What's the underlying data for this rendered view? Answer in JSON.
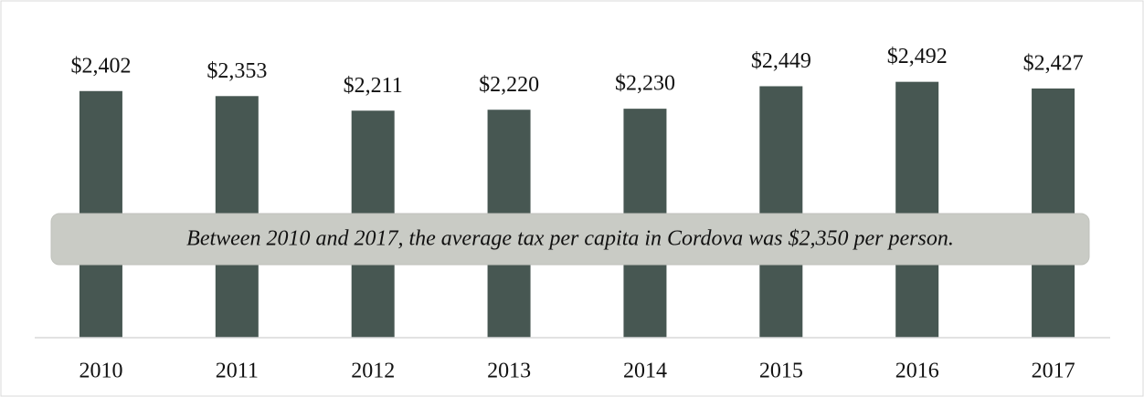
{
  "chart_data": {
    "type": "bar",
    "categories": [
      "2010",
      "2011",
      "2012",
      "2013",
      "2014",
      "2015",
      "2016",
      "2017"
    ],
    "values": [
      2402,
      2353,
      2211,
      2220,
      2230,
      2449,
      2492,
      2427
    ],
    "value_labels": [
      "$2,402",
      "$2,353",
      "$2,211",
      "$2,220",
      "$2,230",
      "$2,449",
      "$2,492",
      "$2,427"
    ],
    "color": "#475752",
    "ylim": [
      0,
      2800
    ],
    "annotation": "Between 2010 and 2017, the average tax per capita in Cordova was $2,350 per person."
  }
}
